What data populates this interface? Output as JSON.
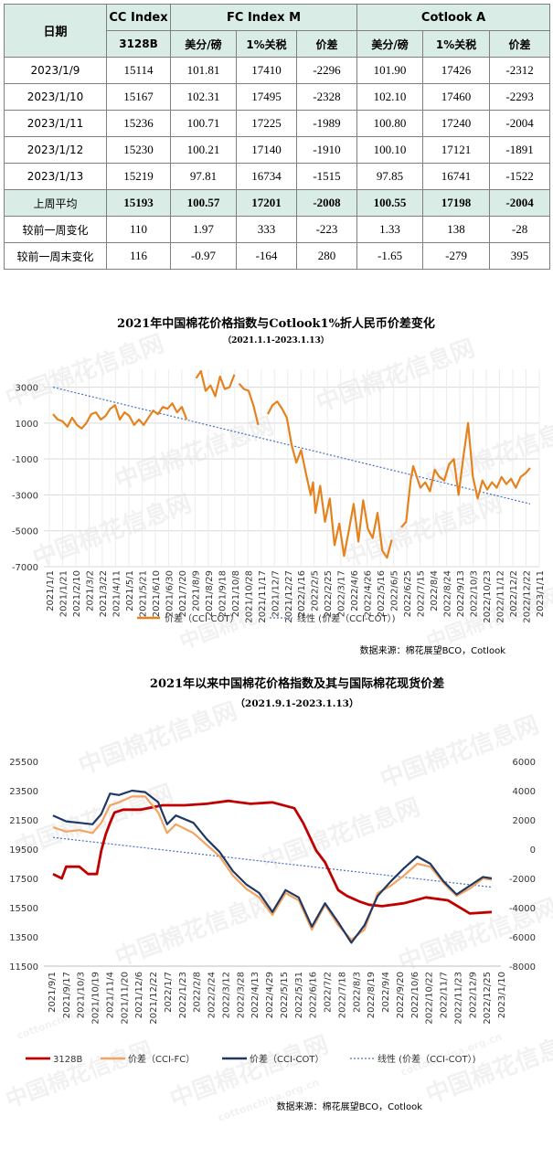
{
  "table": {
    "header_row1": [
      "日期",
      "CC Index",
      "FC Index M",
      "Cotlook A"
    ],
    "header_row2": [
      "3128B",
      "美分/磅",
      "1%关税",
      "价差",
      "美分/磅",
      "1%关税",
      "价差"
    ],
    "rows": [
      [
        "2023/1/9",
        "15114",
        "101.81",
        "17410",
        "-2296",
        "101.90",
        "17426",
        "-2312"
      ],
      [
        "2023/1/10",
        "15167",
        "102.31",
        "17495",
        "-2328",
        "102.10",
        "17460",
        "-2293"
      ],
      [
        "2023/1/11",
        "15236",
        "100.71",
        "17225",
        "-1989",
        "100.80",
        "17240",
        "-2004"
      ],
      [
        "2023/1/12",
        "15230",
        "100.21",
        "17140",
        "-1910",
        "100.10",
        "17121",
        "-1891"
      ],
      [
        "2023/1/13",
        "15219",
        "97.81",
        "16734",
        "-1515",
        "97.85",
        "16741",
        "-1522"
      ]
    ],
    "avg_row": [
      "上周平均",
      "15193",
      "100.57",
      "17201",
      "-2008",
      "100.55",
      "17198",
      "-2004"
    ],
    "change_rows": [
      [
        "较前一周变化",
        "110",
        "1.97",
        "333",
        "-223",
        "1.33",
        "138",
        "-28"
      ],
      [
        "较前一周末变化",
        "116",
        "-0.97",
        "-164",
        "280",
        "-1.65",
        "-279",
        "395"
      ]
    ]
  },
  "watermark": {
    "cn": "中国棉花信息网",
    "en": "cottonchina.org.cn"
  },
  "chart_data": [
    {
      "type": "line",
      "title": "2021年中国棉花价格指数与Cotlook1%折人民币价差变化",
      "subtitle": "（2021.1.1-2023.1.13）",
      "source": "数据来源：棉花展望BCO，Cotlook",
      "ylim": [
        -7000,
        4000
      ],
      "yticks": [
        "3000",
        "1000",
        "-1000",
        "-3000",
        "-5000",
        "-7000"
      ],
      "x_tick_labels": [
        "2021/1/1",
        "2021/1/21",
        "2021/2/10",
        "2021/3/2",
        "2021/3/22",
        "2021/4/11",
        "2021/5/1",
        "2021/5/21",
        "2021/6/10",
        "2021/6/30",
        "2021/7/20",
        "2021/8/9",
        "2021/8/29",
        "2021/9/18",
        "2021/10/8",
        "2021/10/28",
        "2021/11/17",
        "2021/12/7",
        "2021/12/27",
        "2022/1/16",
        "2022/2/5",
        "2022/2/25",
        "2022/3/17",
        "2022/4/6",
        "2022/4/26",
        "2022/5/16",
        "2022/6/5",
        "2022/6/25",
        "2022/7/15",
        "2022/8/4",
        "2022/8/24",
        "2022/9/13",
        "2022/10/3",
        "2022/10/23",
        "2022/11/12",
        "2022/12/2",
        "2022/12/22",
        "2023/1/11"
      ],
      "series": [
        {
          "name": "价差（CCI-COT）",
          "color": "#e6821e",
          "x": [
            0,
            0.01,
            0.02,
            0.03,
            0.04,
            0.05,
            0.06,
            0.07,
            0.08,
            0.09,
            0.1,
            0.11,
            0.12,
            0.13,
            0.14,
            0.15,
            0.16,
            0.17,
            0.18,
            0.19,
            0.2,
            0.21,
            0.22,
            0.23,
            0.24,
            0.25,
            0.26,
            0.27,
            0.28,
            0.29,
            0.3,
            0.31,
            0.32,
            0.33,
            0.34,
            0.35,
            0.36,
            0.37,
            0.38,
            0.385,
            0.39,
            0.4,
            0.41,
            0.42,
            0.43,
            0.44,
            0.45,
            0.46,
            0.47,
            0.48,
            0.49,
            0.5,
            0.51,
            0.52,
            0.53,
            0.54,
            0.545,
            0.55,
            0.56,
            0.57,
            0.58,
            0.59,
            0.6,
            0.61,
            0.62,
            0.63,
            0.64,
            0.65,
            0.66,
            0.67,
            0.68,
            0.69,
            0.7,
            0.71,
            0.72,
            0.73,
            0.74,
            0.75,
            0.755,
            0.76,
            0.77,
            0.78,
            0.79,
            0.8,
            0.81,
            0.82,
            0.83,
            0.84,
            0.85,
            0.86,
            0.87,
            0.88,
            0.89,
            0.9,
            0.91,
            0.92,
            0.93,
            0.94,
            0.95,
            0.96,
            0.97,
            0.98,
            0.99,
            1.0
          ],
          "y": [
            1500,
            1200,
            1100,
            800,
            1300,
            900,
            700,
            1000,
            1500,
            1600,
            1200,
            1400,
            1800,
            2000,
            1200,
            1600,
            1400,
            900,
            1200,
            900,
            1300,
            1700,
            1500,
            1900,
            1800,
            2100,
            1600,
            1900,
            1200,
            null,
            3500,
            3900,
            2800,
            3100,
            2500,
            3600,
            2900,
            3000,
            3700,
            null,
            3200,
            2900,
            2800,
            2000,
            900,
            null,
            1500,
            2000,
            2200,
            1800,
            1300,
            -200,
            -1200,
            -500,
            -1800,
            -3000,
            -2300,
            -4000,
            -2500,
            -4500,
            -3200,
            -5800,
            -4600,
            -6400,
            -5000,
            -3500,
            -5600,
            -3300,
            -4900,
            -5400,
            -4000,
            -6100,
            -6500,
            -5500,
            null,
            -4800,
            -4500,
            -2100,
            -1400,
            -1800,
            -2600,
            -2300,
            -2800,
            -1600,
            -2000,
            -2200,
            -1300,
            -1000,
            -3000,
            -900,
            1000,
            -2000,
            -3200,
            -2200,
            -2700,
            -2300,
            -2600,
            -2000,
            -2400,
            -2100,
            -2600,
            -2000,
            -1800,
            -1500
          ],
          "y_note": "values estimated from gridlines"
        }
      ],
      "trend": {
        "name": "线性 (价差（CCI-COT）)",
        "color": "#4472c4",
        "y_start": 3000,
        "y_end": -3500
      }
    },
    {
      "type": "line",
      "title": "2021年以来中国棉花价格指数及其与国际棉花现货价差",
      "subtitle": "（2021.9.1-2023.1.13）",
      "source": "数据来源：棉花展望BCO，Cotlook",
      "left_ylim": [
        11500,
        25500
      ],
      "left_yticks": [
        "25500",
        "23500",
        "21500",
        "19500",
        "17500",
        "15500",
        "13500",
        "11500"
      ],
      "right_ylim": [
        -8000,
        6000
      ],
      "right_yticks": [
        "6000",
        "4000",
        "2000",
        "0",
        "-2000",
        "-4000",
        "-6000",
        "-8000"
      ],
      "x_tick_labels": [
        "2021/9/1",
        "2021/9/17",
        "2021/10/3",
        "2021/10/19",
        "2021/11/4",
        "2021/11/20",
        "2021/12/6",
        "2021/12/22",
        "2022/1/7",
        "2022/1/23",
        "2022/2/8",
        "2022/2/24",
        "2022/3/12",
        "2022/3/28",
        "2022/4/13",
        "2022/4/29",
        "2022/5/15",
        "2022/5/31",
        "2022/6/16",
        "2022/7/2",
        "2022/7/18",
        "2022/8/3",
        "2022/8/19",
        "2022/9/4",
        "2022/9/20",
        "2022/10/6",
        "2022/10/22",
        "2022/11/7",
        "2022/11/23",
        "2022/12/9",
        "2022/12/25",
        "2023/1/10"
      ],
      "series": [
        {
          "name": "3128B",
          "axis": "left",
          "color": "#c00000",
          "x": [
            0,
            0.02,
            0.03,
            0.06,
            0.08,
            0.1,
            0.11,
            0.12,
            0.13,
            0.14,
            0.16,
            0.2,
            0.25,
            0.3,
            0.35,
            0.4,
            0.45,
            0.5,
            0.55,
            0.57,
            0.6,
            0.62,
            0.65,
            0.67,
            0.7,
            0.72,
            0.75,
            0.8,
            0.85,
            0.9,
            0.95,
            1.0
          ],
          "y": [
            17800,
            17500,
            18300,
            18300,
            17800,
            17800,
            19400,
            20500,
            21300,
            22000,
            22200,
            22200,
            22500,
            22500,
            22600,
            22800,
            22600,
            22700,
            22300,
            21300,
            19400,
            18600,
            16700,
            16300,
            15900,
            15700,
            15600,
            15800,
            16200,
            16000,
            15100,
            15200
          ]
        },
        {
          "name": "价差（CCI-FC）",
          "axis": "right",
          "color": "#f4a460",
          "x": [
            0,
            0.03,
            0.06,
            0.09,
            0.11,
            0.13,
            0.15,
            0.18,
            0.21,
            0.24,
            0.26,
            0.28,
            0.32,
            0.35,
            0.38,
            0.41,
            0.44,
            0.47,
            0.5,
            0.53,
            0.56,
            0.59,
            0.62,
            0.65,
            0.68,
            0.71,
            0.74,
            0.77,
            0.8,
            0.83,
            0.86,
            0.89,
            0.92,
            0.95,
            0.98,
            1.0
          ],
          "y": [
            1500,
            1200,
            1300,
            1100,
            1800,
            3000,
            3200,
            3600,
            3600,
            2500,
            1100,
            1700,
            1100,
            300,
            -500,
            -1800,
            -2700,
            -3300,
            -4500,
            -3000,
            -3500,
            -5500,
            -3800,
            -5200,
            -6200,
            -5500,
            -3000,
            -2500,
            -1800,
            -1000,
            -1200,
            -2300,
            -3200,
            -2700,
            -2000,
            -2100
          ]
        },
        {
          "name": "价差（CCI-COT）",
          "axis": "right",
          "color": "#1f3864",
          "x": [
            0,
            0.03,
            0.06,
            0.09,
            0.11,
            0.13,
            0.15,
            0.18,
            0.21,
            0.24,
            0.26,
            0.28,
            0.32,
            0.35,
            0.38,
            0.41,
            0.44,
            0.47,
            0.5,
            0.53,
            0.56,
            0.59,
            0.62,
            0.65,
            0.68,
            0.71,
            0.74,
            0.77,
            0.8,
            0.83,
            0.86,
            0.89,
            0.92,
            0.95,
            0.98,
            1.0
          ],
          "y": [
            2300,
            1900,
            1800,
            1700,
            2400,
            3800,
            3700,
            4000,
            3900,
            3200,
            1700,
            2300,
            1800,
            700,
            -200,
            -1500,
            -2400,
            -3000,
            -4300,
            -2800,
            -3300,
            -5300,
            -3700,
            -5000,
            -6400,
            -5200,
            -3200,
            -2200,
            -1300,
            -500,
            -1000,
            -2200,
            -3100,
            -2500,
            -1900,
            -2000
          ]
        }
      ],
      "trend": {
        "name": "线性 (价差（CCI-COT）)",
        "axis": "right",
        "color": "#4472c4",
        "y_start": 800,
        "y_end": -2600
      }
    }
  ]
}
